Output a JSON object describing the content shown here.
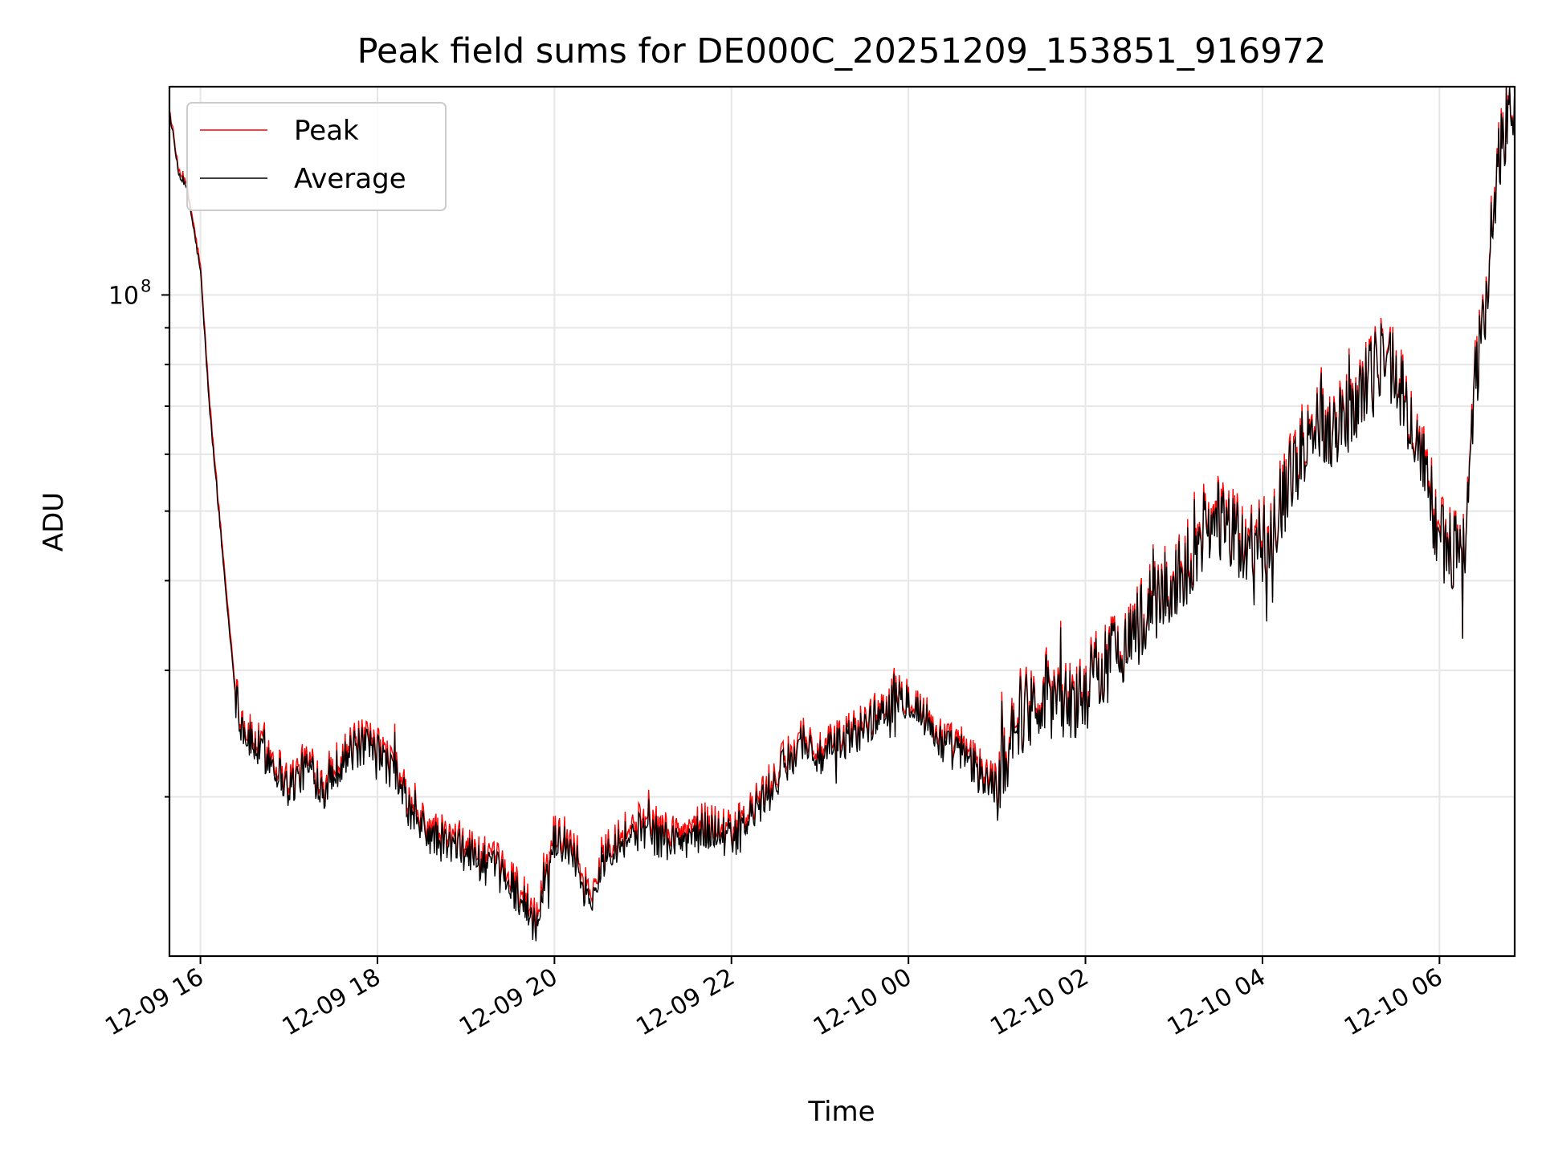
{
  "chart_data": {
    "type": "line",
    "title": "Peak field sums for DE000C_20251209_153851_916972",
    "xlabel": "Time",
    "ylabel": "ADU",
    "yscale": "log",
    "ylim": [
      12000000,
      195000000
    ],
    "xlim_hours": [
      15.65,
      30.85
    ],
    "x_ticks": [
      {
        "hour": 16,
        "label": "12-09 16"
      },
      {
        "hour": 18,
        "label": "12-09 18"
      },
      {
        "hour": 20,
        "label": "12-09 20"
      },
      {
        "hour": 22,
        "label": "12-09 22"
      },
      {
        "hour": 24,
        "label": "12-10 00"
      },
      {
        "hour": 26,
        "label": "12-10 02"
      },
      {
        "hour": 28,
        "label": "12-10 04"
      },
      {
        "hour": 30,
        "label": "12-10 06"
      }
    ],
    "y_major_ticks": [
      {
        "value": 100000000,
        "base": "10",
        "exp": "8"
      }
    ],
    "y_minor_values": [
      20000000,
      30000000,
      40000000,
      50000000,
      60000000,
      70000000,
      80000000,
      90000000
    ],
    "legend": {
      "position": "upper-left",
      "entries": [
        {
          "name": "Peak",
          "color": "#ff0000"
        },
        {
          "name": "Average",
          "color": "#000000"
        }
      ]
    },
    "series": [
      {
        "name": "Peak",
        "color": "#ff0000",
        "anchor_hours": [
          15.65,
          15.75,
          15.85,
          16.0,
          16.1,
          16.2,
          16.3,
          16.4,
          16.5,
          16.6,
          16.8,
          17.0,
          17.2,
          17.4,
          17.6,
          17.8,
          18.0,
          18.2,
          18.4,
          18.6,
          18.8,
          19.0,
          19.2,
          19.4,
          19.6,
          19.8,
          20.0,
          20.2,
          20.4,
          20.6,
          20.8,
          21.0,
          21.2,
          21.4,
          21.6,
          21.8,
          22.0,
          22.2,
          22.4,
          22.6,
          22.8,
          23.0,
          23.2,
          23.4,
          23.6,
          23.8,
          24.0,
          24.2,
          24.4,
          24.6,
          24.8,
          25.0,
          25.2,
          25.4,
          25.6,
          25.8,
          26.0,
          26.2,
          26.4,
          26.6,
          26.8,
          27.0,
          27.2,
          27.4,
          27.6,
          27.8,
          28.0,
          28.2,
          28.4,
          28.6,
          28.8,
          29.0,
          29.2,
          29.4,
          29.6,
          29.8,
          30.0,
          30.1,
          30.2,
          30.3,
          30.4,
          30.5,
          30.6,
          30.7,
          30.8,
          30.85
        ],
        "anchor_values": [
          182000000,
          150000000,
          142000000,
          110000000,
          72000000,
          52000000,
          38000000,
          28000000,
          25000000,
          24000000,
          23000000,
          21000000,
          22500000,
          21000000,
          23000000,
          24000000,
          23500000,
          22000000,
          19000000,
          18000000,
          17500000,
          17200000,
          16500000,
          16000000,
          15000000,
          13500000,
          18000000,
          17500000,
          14500000,
          17500000,
          18000000,
          18500000,
          18000000,
          17800000,
          18300000,
          18500000,
          17800000,
          19000000,
          20500000,
          22500000,
          24500000,
          23000000,
          24000000,
          25000000,
          26000000,
          27500000,
          28000000,
          26000000,
          24000000,
          23500000,
          22000000,
          21000000,
          26000000,
          27500000,
          29000000,
          27000000,
          28500000,
          31000000,
          33000000,
          35000000,
          38000000,
          40000000,
          44000000,
          50000000,
          48000000,
          45000000,
          46000000,
          52000000,
          60000000,
          68000000,
          66000000,
          70000000,
          78000000,
          85000000,
          72000000,
          60000000,
          47000000,
          44000000,
          45000000,
          46000000,
          75000000,
          92000000,
          130000000,
          165000000,
          188000000,
          195000000
        ]
      },
      {
        "name": "Average",
        "color": "#000000",
        "anchor_hours": [
          15.65,
          15.75,
          15.85,
          16.0,
          16.1,
          16.2,
          16.3,
          16.4,
          16.5,
          16.6,
          16.8,
          17.0,
          17.2,
          17.4,
          17.6,
          17.8,
          18.0,
          18.2,
          18.4,
          18.6,
          18.8,
          19.0,
          19.2,
          19.4,
          19.6,
          19.8,
          20.0,
          20.2,
          20.4,
          20.6,
          20.8,
          21.0,
          21.2,
          21.4,
          21.6,
          21.8,
          22.0,
          22.2,
          22.4,
          22.6,
          22.8,
          23.0,
          23.2,
          23.4,
          23.6,
          23.8,
          24.0,
          24.2,
          24.4,
          24.6,
          24.8,
          25.0,
          25.2,
          25.4,
          25.6,
          25.8,
          26.0,
          26.2,
          26.4,
          26.6,
          26.8,
          27.0,
          27.2,
          27.4,
          27.6,
          27.8,
          28.0,
          28.2,
          28.4,
          28.6,
          28.8,
          29.0,
          29.2,
          29.4,
          29.6,
          29.8,
          30.0,
          30.1,
          30.2,
          30.3,
          30.4,
          30.5,
          30.6,
          30.7,
          30.8,
          30.85
        ],
        "anchor_values": [
          180000000,
          148000000,
          140000000,
          108000000,
          70000000,
          51000000,
          37000000,
          27500000,
          24500000,
          23500000,
          22500000,
          20500000,
          22000000,
          20500000,
          22500000,
          23500000,
          23000000,
          21500000,
          18600000,
          17600000,
          17100000,
          16800000,
          16100000,
          15600000,
          14600000,
          13100000,
          17500000,
          17000000,
          14100000,
          17000000,
          17500000,
          18000000,
          17500000,
          17300000,
          17800000,
          18000000,
          17400000,
          18600000,
          20000000,
          22000000,
          24000000,
          22500000,
          23500000,
          24500000,
          25500000,
          27000000,
          27500000,
          25500000,
          23500000,
          23000000,
          21500000,
          20500000,
          25500000,
          27000000,
          28500000,
          26500000,
          28000000,
          30500000,
          32500000,
          34500000,
          37500000,
          39500000,
          43000000,
          49000000,
          47000000,
          44000000,
          45000000,
          51000000,
          59000000,
          67000000,
          65000000,
          69000000,
          77000000,
          84000000,
          71000000,
          59000000,
          46000000,
          43500000,
          44500000,
          45500000,
          74000000,
          91000000,
          128000000,
          163000000,
          186000000,
          193000000
        ]
      }
    ]
  }
}
